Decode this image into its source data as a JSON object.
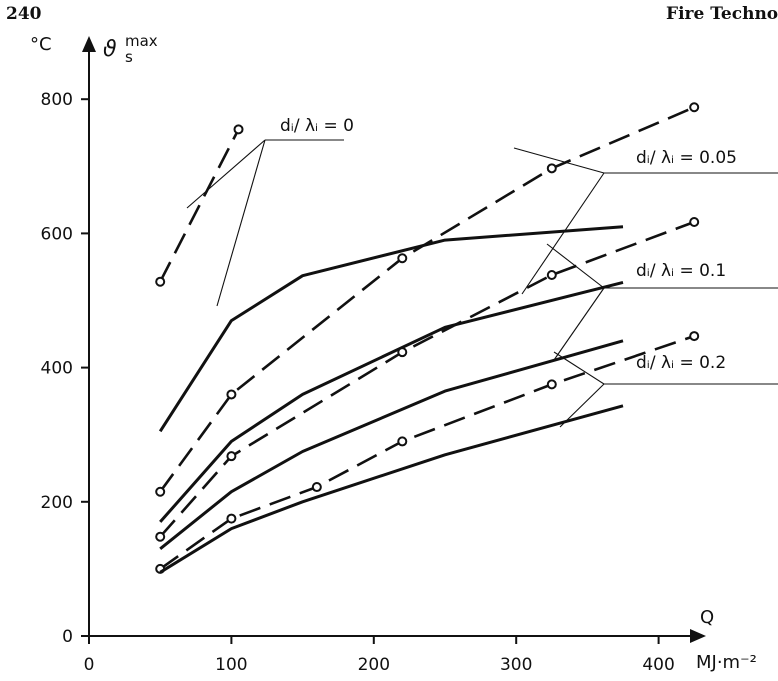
{
  "page": {
    "page_number": "240",
    "running_head": "Fire Techno"
  },
  "chart_data": {
    "type": "line",
    "xlabel": "Q",
    "x_unit": "MJ·m⁻²",
    "ylabel": "ϑ",
    "ylabel_sub": "s",
    "ylabel_sup": "max",
    "y_unit": "°C",
    "xlim": [
      0,
      460
    ],
    "ylim": [
      0,
      860
    ],
    "x_ticks": [
      0,
      100,
      200,
      300,
      400
    ],
    "y_ticks": [
      0,
      200,
      400,
      600,
      800
    ],
    "grid": false,
    "legend": "none",
    "curve_labels": [
      "dᵢ/ λᵢ = 0",
      "dᵢ/ λᵢ = 0.05",
      "dᵢ/ λᵢ = 0.1",
      "dᵢ/ λᵢ = 0.2"
    ],
    "series": [
      {
        "style": "dashed-markers",
        "x": [
          50,
          105
        ],
        "y": [
          528,
          755
        ]
      },
      {
        "style": "solid",
        "x": [
          50,
          100,
          150,
          250,
          375
        ],
        "y": [
          305,
          470,
          537,
          590,
          610
        ]
      },
      {
        "style": "dashed-markers",
        "x": [
          50,
          100,
          220,
          325,
          425
        ],
        "y": [
          215,
          360,
          563,
          697,
          788
        ]
      },
      {
        "style": "solid",
        "x": [
          50,
          100,
          150,
          250,
          375
        ],
        "y": [
          170,
          290,
          360,
          460,
          527
        ]
      },
      {
        "style": "dashed-markers",
        "x": [
          50,
          100,
          220,
          325,
          425
        ],
        "y": [
          148,
          268,
          423,
          538,
          617
        ]
      },
      {
        "style": "solid",
        "x": [
          50,
          100,
          150,
          250,
          375
        ],
        "y": [
          130,
          215,
          275,
          365,
          440
        ]
      },
      {
        "style": "dashed-markers",
        "x": [
          50,
          100,
          160,
          220,
          325,
          425
        ],
        "y": [
          100,
          175,
          222,
          290,
          375,
          447
        ]
      },
      {
        "style": "solid",
        "x": [
          50,
          100,
          150,
          250,
          375
        ],
        "y": [
          95,
          160,
          200,
          270,
          343
        ]
      }
    ]
  }
}
